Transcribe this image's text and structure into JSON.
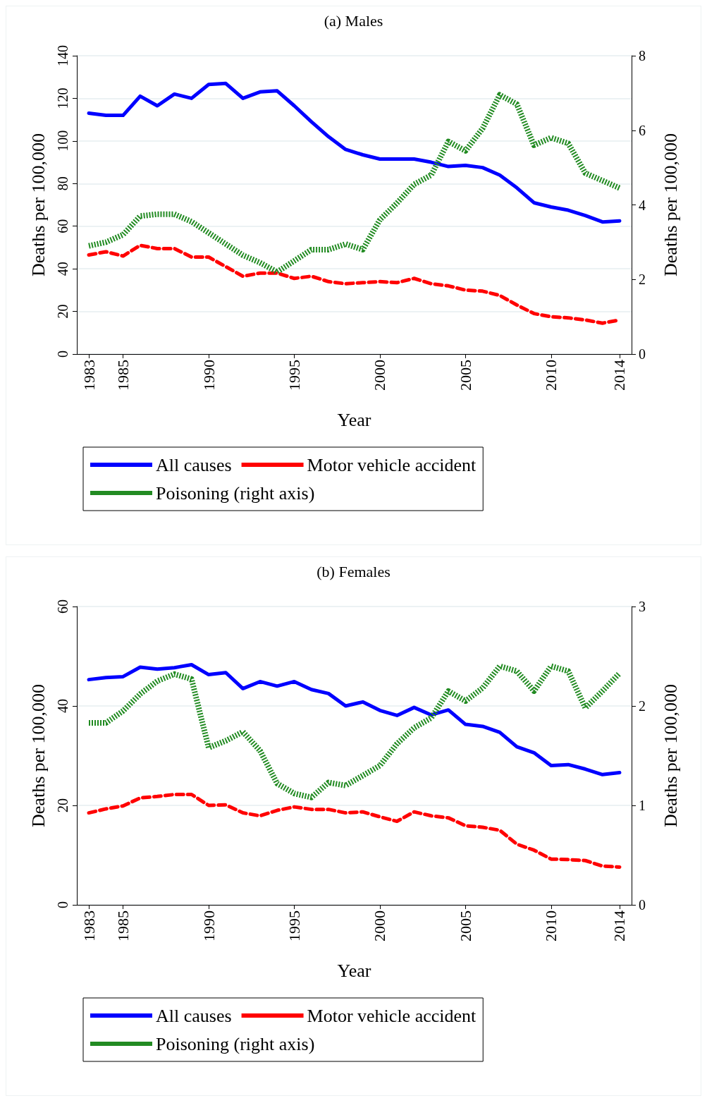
{
  "chart_data": [
    {
      "type": "line",
      "title": "(a) Males",
      "xlabel": "Year",
      "ylabel": "Deaths per 100,000",
      "y2label": "Deaths per 100,000",
      "x": [
        1983,
        1984,
        1985,
        1986,
        1987,
        1988,
        1989,
        1990,
        1991,
        1992,
        1993,
        1994,
        1995,
        1996,
        1997,
        1998,
        1999,
        2000,
        2001,
        2002,
        2003,
        2004,
        2005,
        2006,
        2007,
        2008,
        2009,
        2010,
        2011,
        2012,
        2013,
        2014
      ],
      "xlim": [
        1982.3,
        2014.7
      ],
      "xticks": [
        1983,
        1985,
        1990,
        1995,
        2000,
        2005,
        2010,
        2014
      ],
      "ylim": [
        0,
        140
      ],
      "yticks": [
        0,
        20,
        40,
        60,
        80,
        100,
        120,
        140
      ],
      "y2lim": [
        0,
        8
      ],
      "y2ticks": [
        0,
        2,
        4,
        6,
        8
      ],
      "grid": "y",
      "legend": "bottom",
      "series": [
        {
          "name": "All causes",
          "color": "#0000ff",
          "line_style": "solid",
          "values": [
            113,
            112,
            112,
            121,
            116.5,
            122,
            120,
            126.5,
            127,
            120,
            123,
            123.5,
            116.5,
            109,
            102,
            96,
            93.5,
            91.5,
            91.5,
            91.5,
            90,
            88,
            88.5,
            87.5,
            84,
            78,
            71,
            69,
            67.5,
            65,
            62,
            62.5
          ]
        },
        {
          "name": "Motor vehicle accident",
          "color": "#ff0000",
          "line_style": "dashed",
          "values": [
            46.5,
            48,
            46,
            51,
            49.5,
            49.5,
            45.5,
            45.5,
            41,
            36.5,
            38,
            38,
            35.5,
            36.5,
            34,
            33,
            33.5,
            34,
            33.5,
            35.5,
            33,
            32,
            30,
            29.5,
            27.5,
            23,
            19,
            17.5,
            17,
            16,
            14.5,
            16
          ]
        },
        {
          "name": "Poisoning (right axis)",
          "color": "#228b22",
          "line_style": "dotted",
          "axis": "y2",
          "values": [
            2.9,
            3.0,
            3.2,
            3.7,
            3.75,
            3.75,
            3.55,
            3.25,
            2.95,
            2.65,
            2.45,
            2.2,
            2.5,
            2.8,
            2.8,
            2.95,
            2.8,
            3.6,
            4.05,
            4.55,
            4.8,
            5.7,
            5.45,
            6.05,
            6.95,
            6.7,
            5.6,
            5.8,
            5.65,
            4.85,
            4.65,
            4.45
          ]
        }
      ]
    },
    {
      "type": "line",
      "title": "(b) Females",
      "xlabel": "Year",
      "ylabel": "Deaths per 100,000",
      "y2label": "Deaths per 100,000",
      "x": [
        1983,
        1984,
        1985,
        1986,
        1987,
        1988,
        1989,
        1990,
        1991,
        1992,
        1993,
        1994,
        1995,
        1996,
        1997,
        1998,
        1999,
        2000,
        2001,
        2002,
        2003,
        2004,
        2005,
        2006,
        2007,
        2008,
        2009,
        2010,
        2011,
        2012,
        2013,
        2014
      ],
      "xlim": [
        1982.3,
        2014.7
      ],
      "xticks": [
        1983,
        1985,
        1990,
        1995,
        2000,
        2005,
        2010,
        2014
      ],
      "ylim": [
        0,
        60
      ],
      "yticks": [
        0,
        20,
        40,
        60
      ],
      "y2lim": [
        0,
        3
      ],
      "y2ticks": [
        0,
        1,
        2,
        3
      ],
      "grid": "y",
      "legend": "bottom",
      "series": [
        {
          "name": "All causes",
          "color": "#0000ff",
          "line_style": "solid",
          "values": [
            45.3,
            45.7,
            45.9,
            47.8,
            47.4,
            47.7,
            48.3,
            46.3,
            46.7,
            43.5,
            44.9,
            44.0,
            44.9,
            43.3,
            42.5,
            40.0,
            40.8,
            39.1,
            38.1,
            39.7,
            38.2,
            39.2,
            36.3,
            35.9,
            34.7,
            31.8,
            30.6,
            28.0,
            28.2,
            27.3,
            26.2,
            26.6
          ]
        },
        {
          "name": "Motor vehicle accident",
          "color": "#ff0000",
          "line_style": "dashed",
          "values": [
            18.5,
            19.3,
            19.9,
            21.5,
            21.8,
            22.2,
            22.2,
            20.0,
            20.1,
            18.5,
            17.9,
            19.0,
            19.7,
            19.2,
            19.2,
            18.5,
            18.7,
            17.7,
            16.8,
            18.7,
            17.9,
            17.5,
            15.9,
            15.6,
            15.0,
            12.2,
            11.0,
            9.2,
            9.1,
            8.9,
            7.8,
            7.6
          ]
        },
        {
          "name": "Poisoning (right axis)",
          "color": "#228b22",
          "line_style": "dotted",
          "axis": "y2",
          "values": [
            1.83,
            1.83,
            1.95,
            2.12,
            2.25,
            2.32,
            2.27,
            1.58,
            1.65,
            1.74,
            1.55,
            1.22,
            1.12,
            1.08,
            1.23,
            1.2,
            1.3,
            1.4,
            1.62,
            1.78,
            1.88,
            2.15,
            2.05,
            2.18,
            2.4,
            2.35,
            2.15,
            2.4,
            2.35,
            1.98,
            2.15,
            2.33
          ]
        }
      ]
    }
  ]
}
